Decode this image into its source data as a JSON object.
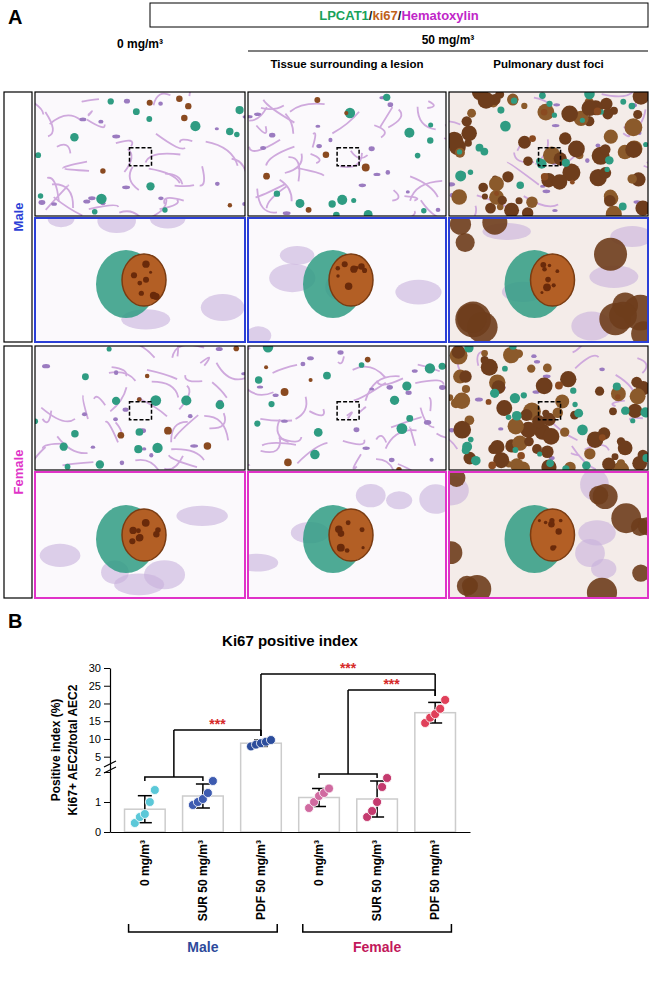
{
  "panel_a": {
    "panel_label": "A",
    "stain": [
      {
        "text": "LPCAT1",
        "color": "#19a25a"
      },
      {
        "text": "/",
        "color": "#222222"
      },
      {
        "text": "ki67",
        "color": "#c0621a"
      },
      {
        "text": "/",
        "color": "#222222"
      },
      {
        "text": "Hematoxylin",
        "color": "#c026c8"
      }
    ],
    "columns": {
      "control": "0 mg/m³",
      "exposed": "50 mg/m³",
      "exposed_sub": [
        "Tissue surrounding a lesion",
        "Pulmonary dust foci"
      ]
    },
    "rows": [
      {
        "label": "Male",
        "color": "#2b3fd6"
      },
      {
        "label": "Female",
        "color": "#e033c8"
      }
    ]
  },
  "chart_data": {
    "type": "bar",
    "panel_label": "B",
    "title": "Ki67 positive index",
    "y_label": [
      "Positive index (%)",
      "Ki67+ AEC2/total AEC2"
    ],
    "categories": [
      "0 mg/m³",
      "SUR 50 mg/m³",
      "PDF 50 mg/m³",
      "0 mg/m³",
      "SUR 50 mg/m³",
      "PDF 50 mg/m³"
    ],
    "values": [
      0.76,
      1.2,
      8.8,
      1.15,
      1.1,
      17.4
    ],
    "errors": [
      0.45,
      0.4,
      0.9,
      0.3,
      0.6,
      2.9
    ],
    "points": [
      [
        0.3,
        0.5,
        0.6,
        1.0,
        1.4
      ],
      [
        0.9,
        1.0,
        1.1,
        1.3,
        1.7
      ],
      [
        7.9,
        8.4,
        8.8,
        9.2,
        9.7
      ],
      [
        0.8,
        1.0,
        1.2,
        1.3,
        1.45
      ],
      [
        0.5,
        0.7,
        1.0,
        1.5,
        1.8
      ],
      [
        14.5,
        16.0,
        17.0,
        18.5,
        21.0
      ]
    ],
    "colors": [
      "#5bc8d8",
      "#3d5bb0",
      "#2c4d9c",
      "#d06aa0",
      "#c43a6e",
      "#e0405a"
    ],
    "groups": [
      {
        "label": "Male",
        "color": "#2d4a9b"
      },
      {
        "label": "Female",
        "color": "#c2185b"
      }
    ],
    "significance": [
      {
        "label": "***",
        "color": "#d62a2a",
        "groups": [
          [
            0,
            1
          ],
          [
            2
          ]
        ]
      },
      {
        "label": "***",
        "color": "#d62a2a",
        "groups": [
          [
            2
          ],
          [
            5
          ]
        ]
      },
      {
        "label": "***",
        "color": "#d62a2a",
        "groups": [
          [
            3,
            4
          ],
          [
            5
          ]
        ]
      }
    ],
    "ylim": [
      0,
      30
    ],
    "yticks": [
      0,
      1,
      2,
      5,
      10,
      15,
      20,
      25,
      30
    ]
  }
}
